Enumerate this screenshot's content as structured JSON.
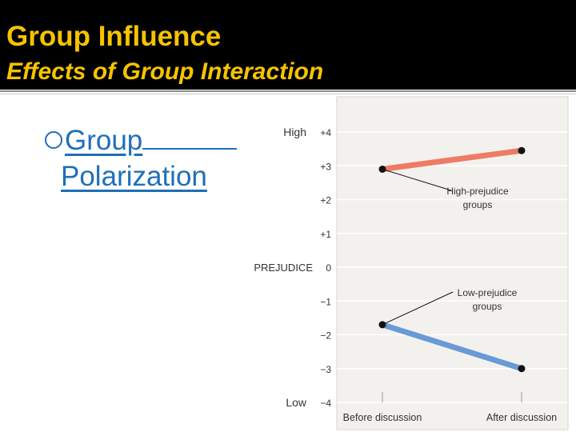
{
  "header": {
    "title": "Group Influence",
    "subtitle": "Effects of Group Interaction"
  },
  "bullet": {
    "line1": "Group",
    "line2": "Polarization"
  },
  "colors": {
    "header_bg": "#000000",
    "title_text": "#f5c400",
    "bullet_text": "#1f6fb8",
    "high_series": "#ee7b64",
    "low_series": "#6a9ad6",
    "plot_bg": "#f3f1ee"
  },
  "chart_data": {
    "type": "line",
    "title": "",
    "xlabel": "",
    "ylabel": "PREJUDICE",
    "categories": [
      "Before discussion",
      "After discussion"
    ],
    "ylim": [
      -4,
      4
    ],
    "yticks": [
      4,
      3,
      2,
      1,
      0,
      -1,
      -2,
      -3,
      -4
    ],
    "ytick_labels": [
      "+4",
      "+3",
      "+2",
      "+1",
      "0",
      "−1",
      "−2",
      "−3",
      "−4"
    ],
    "y_end_labels": {
      "top": "High",
      "bottom": "Low"
    },
    "grid": true,
    "series": [
      {
        "name": "High-prejudice groups",
        "label_lines": [
          "High-prejudice",
          "groups"
        ],
        "values": [
          2.9,
          3.45
        ],
        "color": "#ee7b64"
      },
      {
        "name": "Low-prejudice groups",
        "label_lines": [
          "Low-prejudice",
          "groups"
        ],
        "values": [
          -1.7,
          -3.0
        ],
        "color": "#6a9ad6"
      }
    ]
  }
}
